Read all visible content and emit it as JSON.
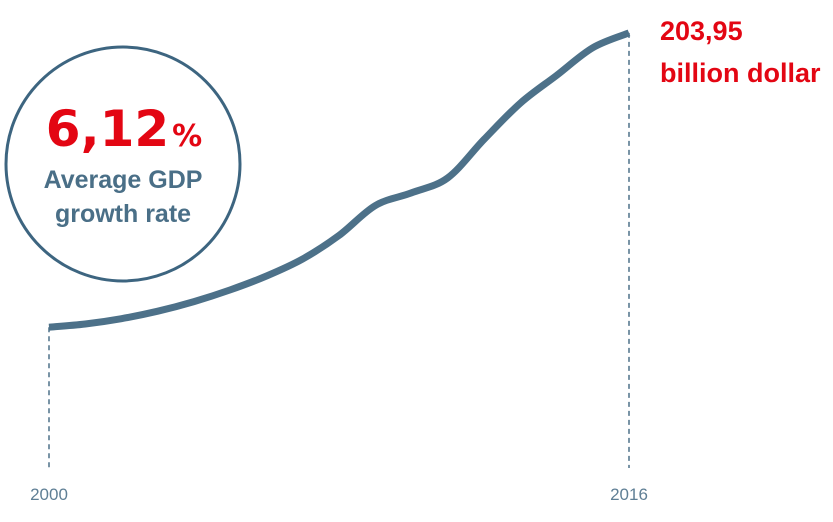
{
  "chart_data": {
    "type": "line",
    "title": "",
    "xlabel": "",
    "ylabel": "",
    "x": [
      2000,
      2001,
      2002,
      2003,
      2004,
      2005,
      2006,
      2007,
      2008,
      2009,
      2010,
      2011,
      2012,
      2013,
      2014,
      2015,
      2016
    ],
    "series": [
      {
        "values": [
          66.0,
          67.5,
          70.0,
          73.5,
          78.0,
          83.5,
          90.0,
          98.0,
          109.0,
          123.0,
          129.0,
          136.0,
          154.0,
          171.0,
          184.0,
          197.0,
          203.95
        ]
      }
    ],
    "xlim": [
      2000,
      2016
    ],
    "ylim": [
      0,
      210
    ],
    "tick_labels": [
      "2000",
      "2016"
    ],
    "end_value": "203,95",
    "end_unit": "billion dollar",
    "grid": false,
    "legend": "none",
    "colors": {
      "line": "#4d7189",
      "accent": "#e30613",
      "circle": "#3d6580",
      "dash": "#4d7189"
    }
  },
  "badge": {
    "value": "6,12",
    "unit": "%",
    "label_line1": "Average GDP",
    "label_line2": "growth rate"
  }
}
